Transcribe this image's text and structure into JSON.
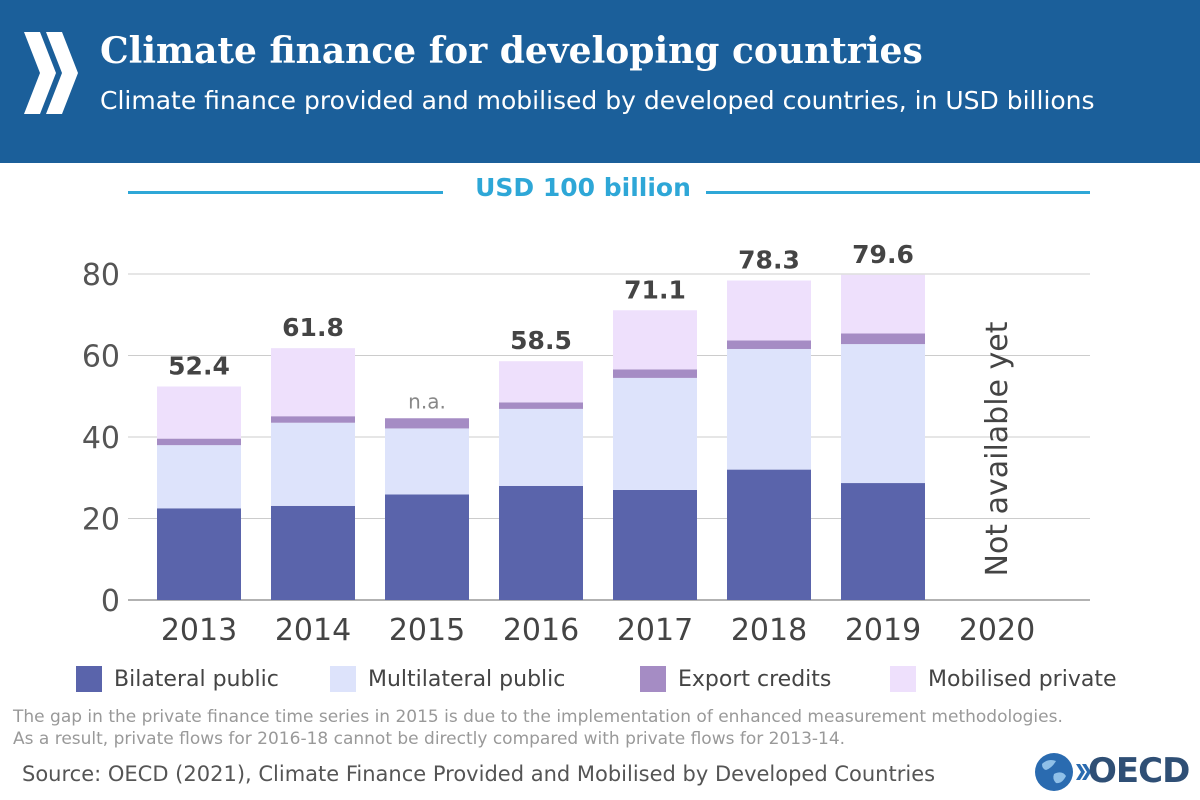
{
  "header": {
    "title": "Climate finance for developing countries",
    "subtitle": "Climate finance provided and mobilised by developed countries, in USD billions"
  },
  "target": {
    "label": "USD 100 billion"
  },
  "chart_data": {
    "type": "bar",
    "stacked": true,
    "categories": [
      "2013",
      "2014",
      "2015",
      "2016",
      "2017",
      "2018",
      "2019",
      "2020"
    ],
    "series": [
      {
        "name": "Bilateral public",
        "color": "#5a64ab",
        "values": [
          22.5,
          23.1,
          25.9,
          28.0,
          27.0,
          32.0,
          28.7,
          null
        ]
      },
      {
        "name": "Multilateral public",
        "color": "#dde3fb",
        "values": [
          15.5,
          20.4,
          16.2,
          18.9,
          27.5,
          29.6,
          34.1,
          null
        ]
      },
      {
        "name": "Export credits",
        "color": "#a58cc4",
        "values": [
          1.6,
          1.6,
          2.5,
          1.6,
          2.1,
          2.1,
          2.6,
          null
        ]
      },
      {
        "name": "Mobilised private",
        "color": "#eee0fc",
        "values": [
          12.8,
          16.7,
          null,
          10.1,
          14.5,
          14.7,
          14.4,
          null
        ]
      }
    ],
    "totals": [
      "52.4",
      "61.8",
      "n.a.",
      "58.5",
      "71.1",
      "78.3",
      "79.6",
      null
    ],
    "unavailable_label": "Not available yet",
    "ylim": [
      0,
      80
    ],
    "yticks": [
      0,
      20,
      40,
      60,
      80
    ],
    "grid": true,
    "legend_position": "bottom"
  },
  "note": {
    "line1": "The gap in the private finance time series in 2015 is due to the implementation of enhanced measurement methodologies.",
    "line2": "As a result, private flows for 2016-18 cannot be directly compared with private flows for 2013-14."
  },
  "source": "Source: OECD (2021), Climate Finance Provided and Mobilised by Developed Countries",
  "logo": {
    "text": "OECD"
  }
}
